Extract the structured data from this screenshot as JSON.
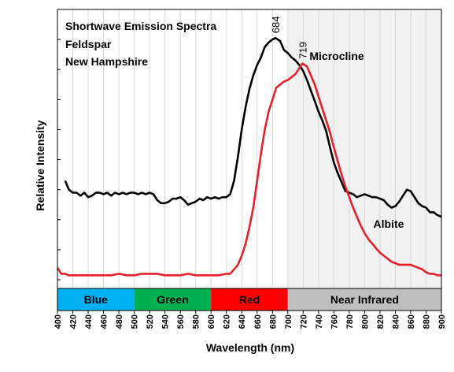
{
  "chart_data": {
    "type": "line",
    "title_lines": [
      "Shortwave Emission Spectra",
      "Feldspar",
      "New Hampshire"
    ],
    "xlabel": "Wavelength (nm)",
    "ylabel": "Relative Intensity",
    "xlim": [
      400,
      900
    ],
    "x_ticks": [
      "400",
      "420",
      "440",
      "460",
      "480",
      "500",
      "520",
      "540",
      "560",
      "580",
      "600",
      "620",
      "640",
      "660",
      "680",
      "700",
      "720",
      "740",
      "760",
      "780",
      "800",
      "820",
      "840",
      "860",
      "880",
      "900"
    ],
    "grid": true,
    "bands": [
      {
        "label": "Blue",
        "x0": 400,
        "x1": 500,
        "color": "#00b0f0"
      },
      {
        "label": "Green",
        "x0": 500,
        "x1": 600,
        "color": "#00b050"
      },
      {
        "label": "Red",
        "x0": 600,
        "x1": 700,
        "color": "#ff0000"
      },
      {
        "label": "Near Infrared",
        "x0": 700,
        "x1": 900,
        "color": "#bfbfbf"
      }
    ],
    "shaded_region": {
      "x0": 700,
      "x1": 900,
      "color": "#f2f2f2"
    },
    "series": [
      {
        "name": "Microcline",
        "color": "#000000",
        "peak_label": "684",
        "x": [
          410,
          415,
          420,
          425,
          430,
          435,
          440,
          445,
          450,
          455,
          460,
          465,
          470,
          475,
          480,
          485,
          490,
          495,
          500,
          505,
          510,
          515,
          520,
          525,
          530,
          535,
          540,
          545,
          550,
          555,
          560,
          565,
          570,
          575,
          580,
          585,
          590,
          595,
          600,
          605,
          610,
          615,
          620,
          625,
          630,
          635,
          640,
          645,
          650,
          655,
          660,
          665,
          670,
          675,
          680,
          684,
          690,
          695,
          700,
          705,
          710,
          715,
          720,
          725,
          730,
          735,
          740,
          745,
          750,
          755,
          760,
          765,
          770,
          775,
          780,
          785,
          790,
          795,
          800,
          805,
          810,
          815,
          820,
          825,
          830,
          835,
          840,
          845,
          850,
          855,
          860,
          865,
          870,
          875,
          880,
          885,
          890,
          895,
          900
        ],
        "y": [
          0.66,
          0.6,
          0.58,
          0.58,
          0.56,
          0.58,
          0.55,
          0.56,
          0.58,
          0.58,
          0.57,
          0.58,
          0.56,
          0.58,
          0.57,
          0.58,
          0.57,
          0.58,
          0.58,
          0.57,
          0.58,
          0.57,
          0.58,
          0.57,
          0.53,
          0.51,
          0.51,
          0.52,
          0.54,
          0.54,
          0.55,
          0.53,
          0.5,
          0.51,
          0.52,
          0.54,
          0.53,
          0.55,
          0.54,
          0.55,
          0.54,
          0.55,
          0.55,
          0.57,
          0.66,
          0.82,
          1.0,
          1.15,
          1.27,
          1.36,
          1.43,
          1.48,
          1.55,
          1.58,
          1.6,
          1.61,
          1.59,
          1.53,
          1.51,
          1.48,
          1.46,
          1.43,
          1.39,
          1.33,
          1.26,
          1.19,
          1.12,
          1.06,
          0.99,
          0.88,
          0.78,
          0.71,
          0.65,
          0.59,
          0.58,
          0.57,
          0.55,
          0.56,
          0.57,
          0.56,
          0.55,
          0.55,
          0.54,
          0.53,
          0.5,
          0.48,
          0.49,
          0.52,
          0.56,
          0.6,
          0.59,
          0.55,
          0.51,
          0.49,
          0.48,
          0.45,
          0.45,
          0.43,
          0.42
        ]
      },
      {
        "name": "Albite",
        "color": "#e8202a",
        "peak_label": "719",
        "x": [
          400,
          405,
          410,
          415,
          420,
          430,
          440,
          450,
          460,
          470,
          480,
          490,
          500,
          510,
          520,
          530,
          540,
          550,
          560,
          570,
          580,
          590,
          600,
          610,
          620,
          625,
          630,
          635,
          640,
          645,
          650,
          655,
          660,
          665,
          670,
          675,
          680,
          685,
          690,
          695,
          700,
          705,
          710,
          715,
          719,
          725,
          730,
          735,
          740,
          745,
          750,
          755,
          760,
          765,
          770,
          775,
          780,
          785,
          790,
          795,
          800,
          805,
          810,
          815,
          820,
          825,
          830,
          835,
          840,
          845,
          850,
          855,
          860,
          865,
          870,
          875,
          880,
          885,
          890,
          895,
          900
        ],
        "y": [
          0.08,
          0.04,
          0.04,
          0.03,
          0.03,
          0.03,
          0.03,
          0.03,
          0.03,
          0.03,
          0.04,
          0.03,
          0.03,
          0.04,
          0.04,
          0.04,
          0.03,
          0.03,
          0.03,
          0.04,
          0.03,
          0.03,
          0.03,
          0.03,
          0.04,
          0.04,
          0.07,
          0.1,
          0.16,
          0.24,
          0.35,
          0.48,
          0.66,
          0.84,
          1.0,
          1.12,
          1.2,
          1.28,
          1.3,
          1.32,
          1.33,
          1.35,
          1.37,
          1.41,
          1.44,
          1.42,
          1.36,
          1.3,
          1.22,
          1.14,
          1.06,
          0.98,
          0.88,
          0.79,
          0.7,
          0.62,
          0.55,
          0.48,
          0.42,
          0.36,
          0.31,
          0.27,
          0.24,
          0.21,
          0.18,
          0.16,
          0.14,
          0.12,
          0.11,
          0.1,
          0.1,
          0.1,
          0.1,
          0.09,
          0.08,
          0.07,
          0.05,
          0.04,
          0.04,
          0.03,
          0.03
        ]
      }
    ]
  }
}
